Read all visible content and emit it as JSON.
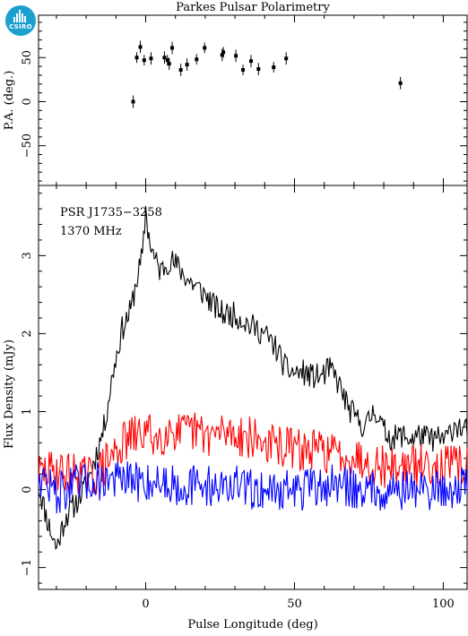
{
  "title": "Parkes Pulsar Polarimetry",
  "logo_text": "CSIRO",
  "chart_data": [
    {
      "type": "scatter",
      "ylabel": "P.A. (deg.)",
      "xlim": [
        -36,
        108
      ],
      "ylim": [
        -95,
        98
      ],
      "yticks": [
        -50,
        0,
        50
      ],
      "points": [
        {
          "x": -4.2,
          "y": 0,
          "err": 7
        },
        {
          "x": -3.0,
          "y": 50,
          "err": 6
        },
        {
          "x": -1.8,
          "y": 62,
          "err": 7
        },
        {
          "x": -0.5,
          "y": 47,
          "err": 6
        },
        {
          "x": 1.8,
          "y": 49,
          "err": 7
        },
        {
          "x": 6.3,
          "y": 50,
          "err": 7
        },
        {
          "x": 7.3,
          "y": 47,
          "err": 6
        },
        {
          "x": 7.9,
          "y": 43,
          "err": 7
        },
        {
          "x": 8.9,
          "y": 61,
          "err": 7
        },
        {
          "x": 11.8,
          "y": 36,
          "err": 7
        },
        {
          "x": 13.9,
          "y": 42,
          "err": 7
        },
        {
          "x": 17.1,
          "y": 48,
          "err": 6
        },
        {
          "x": 19.8,
          "y": 61,
          "err": 6
        },
        {
          "x": 25.7,
          "y": 53,
          "err": 7
        },
        {
          "x": 26.1,
          "y": 56,
          "err": 6
        },
        {
          "x": 30.3,
          "y": 52,
          "err": 7
        },
        {
          "x": 32.7,
          "y": 36,
          "err": 6
        },
        {
          "x": 35.4,
          "y": 46,
          "err": 7
        },
        {
          "x": 37.9,
          "y": 37,
          "err": 7
        },
        {
          "x": 43.0,
          "y": 39,
          "err": 6
        },
        {
          "x": 47.2,
          "y": 49,
          "err": 7
        },
        {
          "x": 85.6,
          "y": 21,
          "err": 7
        }
      ]
    },
    {
      "type": "line",
      "xlabel": "Pulse Longitude (deg)",
      "ylabel": "Flux Density (mJy)",
      "annotations": [
        "PSR J1735−3258",
        "1370 MHz"
      ],
      "xlim": [
        -36,
        108
      ],
      "ylim": [
        -1.28,
        3.9
      ],
      "xticks": [
        0,
        50,
        100
      ],
      "yticks": [
        -1,
        0,
        1,
        2,
        3
      ],
      "series": [
        {
          "color": "#000000",
          "x": [
            -36,
            -33,
            -30,
            -27,
            -24,
            -20,
            -17,
            -14,
            -11,
            -8,
            -5,
            -3,
            -1,
            0,
            1,
            3,
            5,
            8,
            11,
            14,
            17,
            20,
            23,
            26,
            29,
            32,
            35,
            38,
            41,
            44,
            47,
            50,
            53,
            56,
            59,
            62,
            65,
            68,
            71,
            74,
            77,
            80,
            83,
            86,
            89,
            92,
            95,
            98,
            101,
            104,
            107
          ],
          "y": [
            0.05,
            -0.4,
            -0.75,
            -0.35,
            -0.2,
            0.05,
            0.4,
            0.8,
            1.5,
            2.05,
            2.3,
            2.7,
            3.0,
            3.6,
            3.25,
            2.95,
            2.8,
            2.95,
            2.85,
            2.7,
            2.6,
            2.5,
            2.35,
            2.25,
            2.25,
            2.2,
            2.1,
            2.05,
            1.95,
            1.8,
            1.55,
            1.5,
            1.5,
            1.45,
            1.45,
            1.55,
            1.35,
            1.05,
            0.9,
            0.8,
            1.05,
            0.75,
            0.65,
            0.7,
            0.65,
            0.7,
            0.65,
            0.65,
            0.65,
            0.85,
            0.75
          ]
        },
        {
          "color": "#ff0000",
          "x": [
            -36,
            -30,
            -24,
            -18,
            -14,
            -10,
            -6,
            -2,
            0,
            4,
            8,
            12,
            16,
            20,
            24,
            28,
            32,
            36,
            40,
            44,
            48,
            52,
            56,
            60,
            64,
            68,
            72,
            76,
            80,
            84,
            88,
            92,
            96,
            100,
            104,
            107
          ],
          "y": [
            0.2,
            0.25,
            0.2,
            0.15,
            0.3,
            0.5,
            0.65,
            0.7,
            0.75,
            0.65,
            0.8,
            0.7,
            0.75,
            0.7,
            0.7,
            0.75,
            0.7,
            0.65,
            0.6,
            0.55,
            0.55,
            0.5,
            0.5,
            0.5,
            0.45,
            0.45,
            0.4,
            0.35,
            0.3,
            0.3,
            0.3,
            0.3,
            0.35,
            0.3,
            0.3,
            0.3
          ]
        },
        {
          "color": "#0000ff",
          "x": [
            -36,
            -30,
            -24,
            -18,
            -12,
            -6,
            0,
            6,
            12,
            18,
            24,
            30,
            36,
            42,
            48,
            54,
            60,
            66,
            72,
            78,
            84,
            90,
            96,
            102,
            107
          ],
          "y": [
            0.2,
            -0.05,
            0.05,
            0.1,
            0.15,
            0.1,
            0.1,
            0.1,
            0.05,
            0.05,
            0.05,
            0.05,
            0.0,
            0.0,
            0.0,
            0.0,
            0.05,
            0.05,
            0.0,
            0.0,
            0.0,
            0.0,
            0.0,
            0.0,
            0.05
          ]
        }
      ]
    }
  ]
}
